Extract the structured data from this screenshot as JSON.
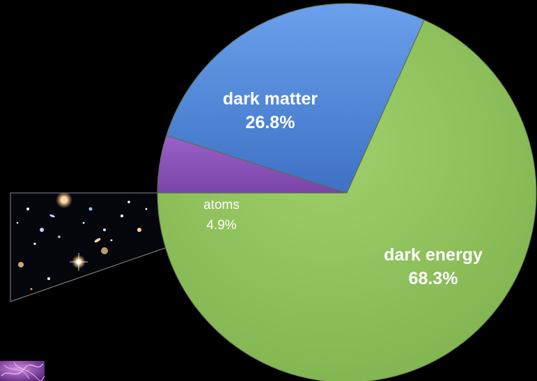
{
  "chart_data": {
    "type": "pie",
    "title": "",
    "categories": [
      "atoms",
      "dark matter",
      "dark energy"
    ],
    "values": [
      4.9,
      26.8,
      68.3
    ],
    "labels": [
      {
        "name": "atoms",
        "value": "4.9%"
      },
      {
        "name": "dark matter",
        "value": "26.8%"
      },
      {
        "name": "dark energy",
        "value": "68.3%"
      }
    ],
    "colors": [
      "#8a52b8",
      "#4a7fd0",
      "#8cc35a"
    ],
    "legend": "none"
  },
  "decorations": {
    "inset_image_icon": "deep-field-galaxies-image",
    "corner_image_icon": "cosmic-web-image"
  }
}
